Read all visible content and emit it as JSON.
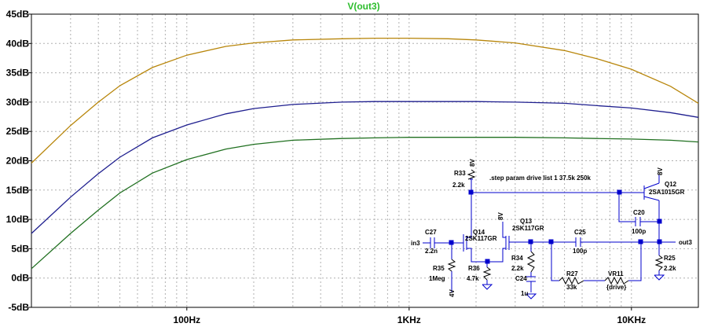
{
  "chart_data": {
    "type": "line",
    "title": "V(out3)",
    "title_color": "#2dbd2d",
    "x_scale": "log",
    "xlim": [
      20,
      20000
    ],
    "ylim": [
      -5,
      45
    ],
    "y_ticks": [
      -5,
      0,
      5,
      10,
      15,
      20,
      25,
      30,
      35,
      40,
      45
    ],
    "y_tick_labels": [
      "-5dB",
      "0dB",
      "5dB",
      "10dB",
      "15dB",
      "20dB",
      "25dB",
      "30dB",
      "35dB",
      "40dB",
      "45dB"
    ],
    "x_ticks": [
      100,
      1000,
      10000
    ],
    "x_tick_labels": [
      "100Hz",
      "1KHz",
      "10KHz"
    ],
    "grid": true,
    "series": [
      {
        "color": "#b8860b",
        "x": [
          20,
          30,
          40,
          50,
          70,
          100,
          150,
          200,
          300,
          500,
          700,
          1000,
          1500,
          2000,
          3000,
          5000,
          7000,
          10000,
          15000,
          20000
        ],
        "values": [
          19.6,
          26.0,
          30.0,
          32.8,
          35.9,
          38.0,
          39.5,
          40.1,
          40.6,
          40.8,
          40.9,
          40.9,
          40.8,
          40.6,
          40.1,
          38.8,
          37.4,
          35.6,
          32.7,
          29.8
        ]
      },
      {
        "color": "#1f1f8f",
        "x": [
          20,
          30,
          40,
          50,
          70,
          100,
          150,
          200,
          300,
          500,
          700,
          1000,
          1500,
          2000,
          3000,
          5000,
          7000,
          10000,
          15000,
          20000
        ],
        "values": [
          7.6,
          13.8,
          17.8,
          20.6,
          23.9,
          26.1,
          28.0,
          28.9,
          29.6,
          30.0,
          30.1,
          30.1,
          30.1,
          30.1,
          30.0,
          29.8,
          29.4,
          29.0,
          28.2,
          27.4
        ]
      },
      {
        "color": "#207020",
        "x": [
          20,
          30,
          40,
          50,
          70,
          100,
          150,
          200,
          300,
          500,
          700,
          1000,
          1500,
          2000,
          3000,
          5000,
          7000,
          10000,
          15000,
          20000
        ],
        "values": [
          1.6,
          7.6,
          11.6,
          14.5,
          17.9,
          20.2,
          22.0,
          22.8,
          23.5,
          23.8,
          23.9,
          24.0,
          24.0,
          24.0,
          24.0,
          23.9,
          23.8,
          23.7,
          23.5,
          23.2
        ]
      }
    ]
  },
  "schematic": {
    "directive": ".step param drive list 1 37.5k 250k",
    "labels": {
      "r33": "R33",
      "r33v": "2.2k",
      "q12": "Q12",
      "q12m": "2SA1015GR",
      "c20": "C20",
      "c20v": "100p",
      "q13": "Q13",
      "q13m": "2SK117GR",
      "q14": "Q14",
      "q14m": "2SK117GR",
      "c27": "C27",
      "c27v": "2.2n",
      "c25": "C25",
      "c25v": "100p",
      "r34": "R34",
      "r34v": "2.2k",
      "c24": "C24",
      "c24v": "1u",
      "r35": "R35",
      "r35v": "1Meg",
      "r36": "R36",
      "r36v": "4.7k",
      "r27": "R27",
      "r27v": "33k",
      "vr11": "VR11",
      "vr11v": "{drive}",
      "r25": "R25",
      "r25v": "2.2k",
      "in": "in3",
      "out": "out3",
      "v8a": "8V",
      "v8b": "8V",
      "v8c": "8V",
      "v4": "4V"
    }
  }
}
